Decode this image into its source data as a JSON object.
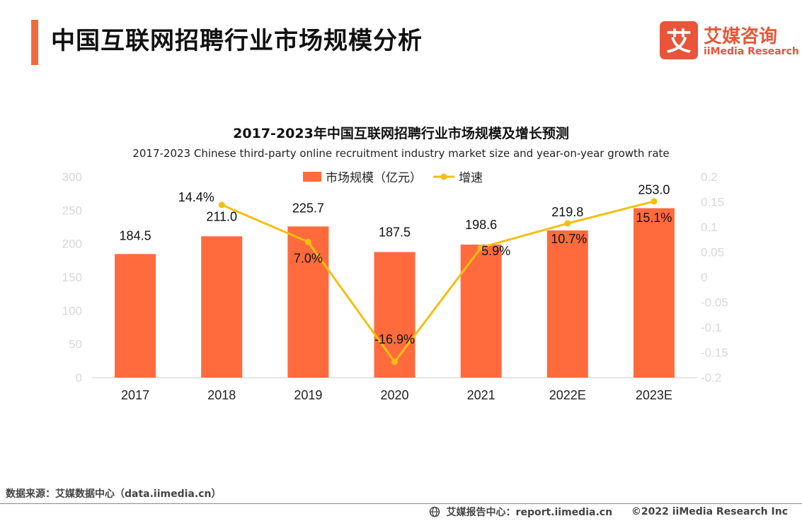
{
  "header": {
    "title": "中国互联网招聘行业市场规模分析"
  },
  "logo": {
    "name_cn": "艾媒咨询",
    "name_en": "iiMedia Research",
    "mark_glyph": "艾"
  },
  "colors": {
    "accent": "#f26b3a",
    "bar": "#ff6b3d",
    "line": "#f5bf10",
    "axis_text": "#d8d8d8",
    "brand": "#e8553a"
  },
  "chart_data": {
    "type": "bar",
    "title": "2017-2023年中国互联网招聘行业市场规模及增长预测",
    "subtitle": "2017-2023 Chinese third-party online recruitment industry market size and year-on-year growth rate",
    "categories": [
      "2017",
      "2018",
      "2019",
      "2020",
      "2021",
      "2022E",
      "2023E"
    ],
    "series": [
      {
        "name": "市场规模（亿元）",
        "type": "bar",
        "axis": "left",
        "values": [
          184.5,
          211.0,
          225.7,
          187.5,
          198.6,
          219.8,
          253.0
        ],
        "labels": [
          "184.5",
          "211.0",
          "225.7",
          "187.5",
          "198.6",
          "219.8",
          "253.0"
        ]
      },
      {
        "name": "增速",
        "type": "line",
        "axis": "right",
        "values": [
          null,
          0.144,
          0.07,
          -0.169,
          0.059,
          0.107,
          0.151
        ],
        "labels": [
          "",
          "14.4%",
          "7.0%",
          "-16.9%",
          "5.9%",
          "10.7%",
          "15.1%"
        ]
      }
    ],
    "y_left": {
      "min": 0,
      "max": 300,
      "ticks": [
        "300",
        "250",
        "200",
        "150",
        "100",
        "50",
        "0"
      ],
      "tick_values": [
        300,
        250,
        200,
        150,
        100,
        50,
        0
      ]
    },
    "y_right": {
      "min": -0.2,
      "max": 0.2,
      "ticks": [
        "0.2",
        "0.15",
        "0.1",
        "0.05",
        "0",
        "-0.05",
        "-0.1",
        "-0.15",
        "-0.2"
      ],
      "tick_values": [
        0.2,
        0.15,
        0.1,
        0.05,
        0,
        -0.05,
        -0.1,
        -0.15,
        -0.2
      ]
    },
    "legend": {
      "position": "top-center"
    },
    "grid": false
  },
  "footer": {
    "source": "数据来源：艾媒数据中心（data.iimedia.cn）",
    "report_center": "艾媒报告中心：report.iimedia.cn",
    "copyright": "©2022  iiMedia Research  Inc"
  }
}
